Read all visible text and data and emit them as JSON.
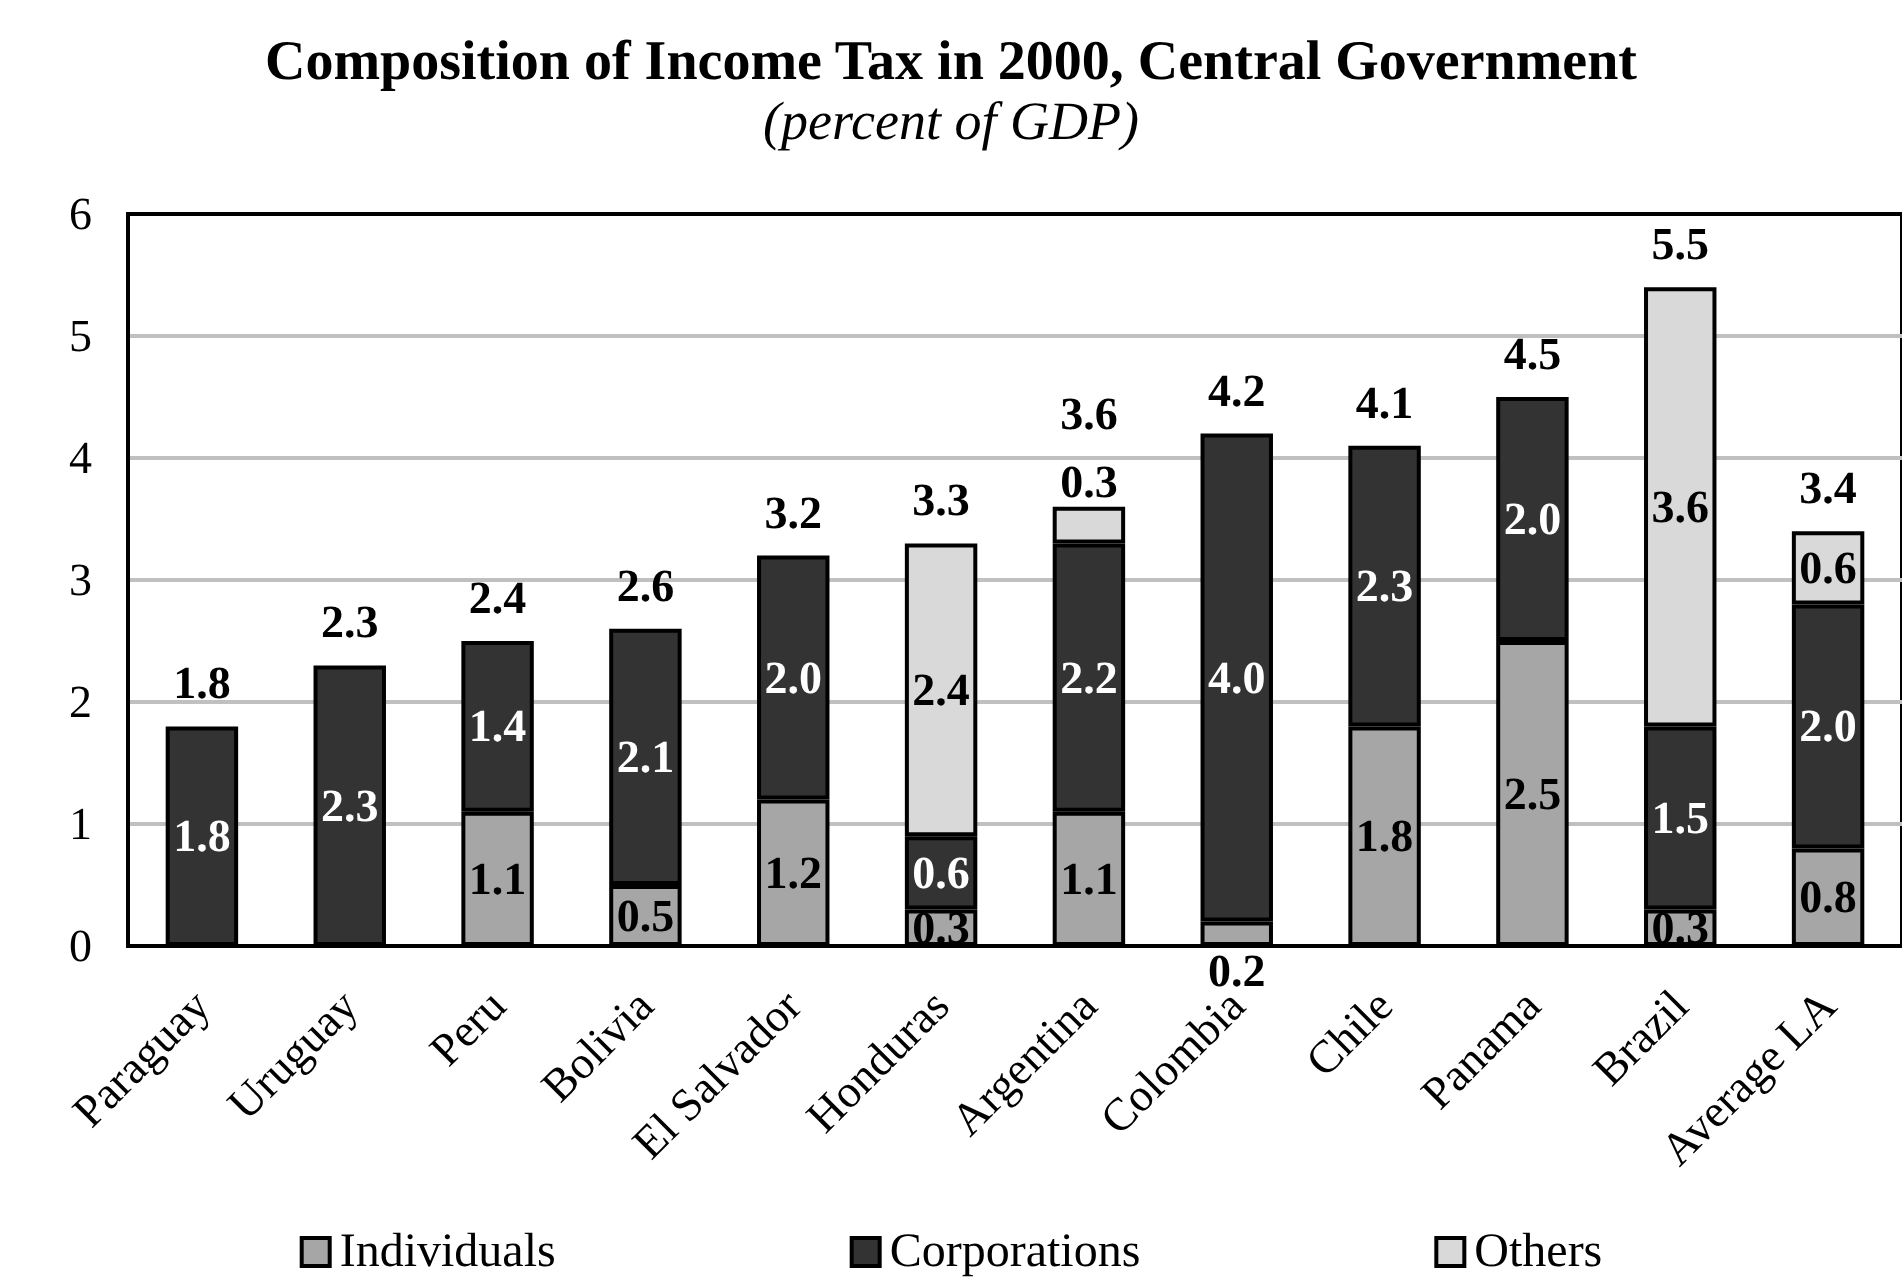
{
  "chart_data": {
    "type": "bar",
    "title": "Composition of Income Tax in 2000, Central Government",
    "subtitle": "(percent of GDP)",
    "categories": [
      "Paraguay",
      "Uruguay",
      "Peru",
      "Bolivia",
      "El Salvador",
      "Honduras",
      "Argentina",
      "Colombia",
      "Chile",
      "Panama",
      "Brazil",
      "Average LA"
    ],
    "stacked": true,
    "series": [
      {
        "name": "Individuals",
        "color": "#a6a6a6",
        "values": [
          null,
          null,
          1.1,
          0.5,
          1.2,
          0.3,
          1.1,
          0.2,
          1.8,
          2.5,
          0.3,
          0.8
        ],
        "value_labels": [
          null,
          null,
          "1.1",
          "0.5",
          "1.2",
          "0.3",
          "1.1",
          "0.2",
          "1.8",
          "2.5",
          "0.3",
          "0.8"
        ]
      },
      {
        "name": "Corporations",
        "color": "#333333",
        "values": [
          1.8,
          2.3,
          1.4,
          2.1,
          2.0,
          0.6,
          2.2,
          4.0,
          2.3,
          2.0,
          1.5,
          2.0
        ],
        "value_labels": [
          "1.8",
          "2.3",
          "1.4",
          "2.1",
          "2.0",
          "0.6",
          "2.2",
          "4.0",
          "2.3",
          "2.0",
          "1.5",
          "2.0"
        ]
      },
      {
        "name": "Others",
        "color": "#d9d9d9",
        "values": [
          null,
          null,
          null,
          null,
          null,
          2.4,
          0.3,
          null,
          null,
          null,
          3.6,
          0.6
        ],
        "value_labels": [
          null,
          null,
          null,
          null,
          null,
          "2.4",
          "0.3",
          null,
          null,
          null,
          "3.6",
          "0.6"
        ]
      }
    ],
    "totals": [
      "1.8",
      "2.3",
      "2.4",
      "2.6",
      "3.2",
      "3.3",
      "3.6",
      "4.2",
      "4.1",
      "4.5",
      "5.5",
      "3.4"
    ],
    "ylim": [
      0,
      6
    ],
    "yticks": [
      0,
      1,
      2,
      3,
      4,
      5,
      6
    ],
    "grid": "y",
    "legend": "bottom"
  }
}
